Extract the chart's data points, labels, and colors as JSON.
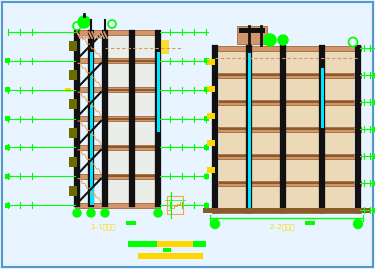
{
  "bg_color": "#e8f4ff",
  "border_color": "#5599cc",
  "title_left": "1-1剩面图",
  "title_right": "2-2剩面图",
  "title_color": "#ffd700",
  "green": "#00ff00",
  "orange": "#ffa040",
  "tan": "#d4956a",
  "brown": "#8b5a2b",
  "black": "#111111",
  "cyan": "#00e5ff",
  "gold": "#ffd700",
  "olive": "#6b6b00",
  "fig_width": 3.75,
  "fig_height": 2.69,
  "dpi": 100
}
